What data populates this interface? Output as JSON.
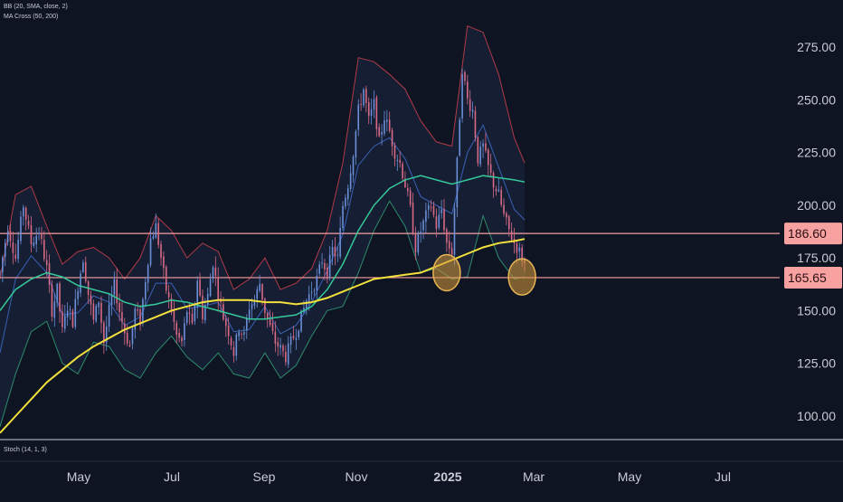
{
  "chart_data": {
    "type": "line",
    "indicators": {
      "bb_label": "BB (20, SMA, close, 2)",
      "ma_label": "MA Cross (50, 200)",
      "stoch_label": "Stoch (14, 1, 3)"
    },
    "y_axis": {
      "ticks": [
        275,
        250,
        225,
        200,
        175,
        150,
        125,
        100
      ],
      "tick_labels": [
        "275.00",
        "250.00",
        "225.00",
        "200.00",
        "175.00",
        "150.00",
        "125.00",
        "100.00"
      ],
      "ylim": [
        92,
        292
      ]
    },
    "x_axis": {
      "tick_labels": [
        "May",
        "Jul",
        "Sep",
        "Nov",
        "2025",
        "Mar",
        "May",
        "Jul"
      ],
      "bold_labels": [
        "2025"
      ]
    },
    "horizontal_levels": [
      {
        "value": 186.6,
        "label": "186.60",
        "color": "#f7a1a1"
      },
      {
        "value": 165.65,
        "label": "165.65",
        "color": "#f7a1a1"
      }
    ],
    "price_path": [
      [
        0,
        168
      ],
      [
        3,
        190
      ],
      [
        6,
        175
      ],
      [
        9,
        200
      ],
      [
        12,
        182
      ],
      [
        15,
        188
      ],
      [
        18,
        170
      ],
      [
        20,
        150
      ],
      [
        22,
        160
      ],
      [
        24,
        140
      ],
      [
        26,
        152
      ],
      [
        28,
        145
      ],
      [
        30,
        162
      ],
      [
        32,
        175
      ],
      [
        34,
        158
      ],
      [
        36,
        145
      ],
      [
        38,
        155
      ],
      [
        40,
        135
      ],
      [
        42,
        150
      ],
      [
        44,
        162
      ],
      [
        46,
        150
      ],
      [
        48,
        140
      ],
      [
        50,
        133
      ],
      [
        52,
        150
      ],
      [
        54,
        145
      ],
      [
        56,
        165
      ],
      [
        58,
        184
      ],
      [
        60,
        190
      ],
      [
        62,
        175
      ],
      [
        64,
        160
      ],
      [
        66,
        150
      ],
      [
        68,
        138
      ],
      [
        70,
        135
      ],
      [
        72,
        150
      ],
      [
        74,
        142
      ],
      [
        76,
        165
      ],
      [
        78,
        148
      ],
      [
        80,
        157
      ],
      [
        82,
        173
      ],
      [
        84,
        158
      ],
      [
        86,
        147
      ],
      [
        88,
        140
      ],
      [
        90,
        130
      ],
      [
        92,
        142
      ],
      [
        94,
        138
      ],
      [
        96,
        152
      ],
      [
        98,
        155
      ],
      [
        100,
        163
      ],
      [
        102,
        150
      ],
      [
        104,
        142
      ],
      [
        106,
        135
      ],
      [
        108,
        132
      ],
      [
        110,
        128
      ],
      [
        112,
        135
      ],
      [
        114,
        140
      ],
      [
        116,
        147
      ],
      [
        118,
        155
      ],
      [
        120,
        160
      ],
      [
        122,
        165
      ],
      [
        124,
        174
      ],
      [
        126,
        168
      ],
      [
        128,
        179
      ],
      [
        130,
        175
      ],
      [
        132,
        200
      ],
      [
        134,
        210
      ],
      [
        136,
        225
      ],
      [
        138,
        245
      ],
      [
        140,
        255
      ],
      [
        142,
        240
      ],
      [
        144,
        248
      ],
      [
        146,
        230
      ],
      [
        148,
        242
      ],
      [
        150,
        235
      ],
      [
        152,
        225
      ],
      [
        154,
        220
      ],
      [
        156,
        210
      ],
      [
        158,
        198
      ],
      [
        160,
        180
      ],
      [
        162,
        188
      ],
      [
        164,
        195
      ],
      [
        166,
        200
      ],
      [
        168,
        190
      ],
      [
        170,
        198
      ],
      [
        172,
        182
      ],
      [
        174,
        178
      ],
      [
        176,
        220
      ],
      [
        178,
        265
      ],
      [
        180,
        250
      ],
      [
        182,
        245
      ],
      [
        184,
        222
      ],
      [
        186,
        228
      ],
      [
        188,
        218
      ],
      [
        190,
        210
      ],
      [
        192,
        205
      ],
      [
        194,
        195
      ],
      [
        196,
        188
      ],
      [
        198,
        182
      ],
      [
        200,
        178
      ],
      [
        202,
        172
      ]
    ],
    "bb_upper": [
      [
        0,
        165
      ],
      [
        6,
        205
      ],
      [
        12,
        209
      ],
      [
        18,
        190
      ],
      [
        24,
        172
      ],
      [
        30,
        178
      ],
      [
        36,
        180
      ],
      [
        42,
        175
      ],
      [
        48,
        165
      ],
      [
        54,
        175
      ],
      [
        60,
        195
      ],
      [
        66,
        188
      ],
      [
        72,
        175
      ],
      [
        78,
        182
      ],
      [
        84,
        178
      ],
      [
        90,
        160
      ],
      [
        96,
        165
      ],
      [
        102,
        175
      ],
      [
        108,
        160
      ],
      [
        114,
        163
      ],
      [
        120,
        170
      ],
      [
        126,
        188
      ],
      [
        132,
        220
      ],
      [
        138,
        270
      ],
      [
        144,
        268
      ],
      [
        150,
        262
      ],
      [
        156,
        255
      ],
      [
        162,
        240
      ],
      [
        168,
        230
      ],
      [
        174,
        228
      ],
      [
        180,
        285
      ],
      [
        186,
        282
      ],
      [
        192,
        262
      ],
      [
        198,
        232
      ],
      [
        202,
        220
      ]
    ],
    "bb_lower": [
      [
        0,
        95
      ],
      [
        6,
        120
      ],
      [
        12,
        140
      ],
      [
        18,
        145
      ],
      [
        24,
        125
      ],
      [
        30,
        120
      ],
      [
        36,
        135
      ],
      [
        42,
        133
      ],
      [
        48,
        122
      ],
      [
        54,
        118
      ],
      [
        60,
        130
      ],
      [
        66,
        138
      ],
      [
        72,
        128
      ],
      [
        78,
        122
      ],
      [
        84,
        130
      ],
      [
        90,
        120
      ],
      [
        96,
        118
      ],
      [
        102,
        130
      ],
      [
        108,
        118
      ],
      [
        114,
        124
      ],
      [
        120,
        138
      ],
      [
        126,
        150
      ],
      [
        132,
        152
      ],
      [
        138,
        168
      ],
      [
        144,
        188
      ],
      [
        150,
        202
      ],
      [
        156,
        190
      ],
      [
        162,
        168
      ],
      [
        168,
        170
      ],
      [
        174,
        165
      ],
      [
        180,
        166
      ],
      [
        186,
        195
      ],
      [
        192,
        175
      ],
      [
        198,
        165
      ],
      [
        202,
        166
      ]
    ],
    "bb_middle": [
      [
        0,
        130
      ],
      [
        6,
        165
      ],
      [
        12,
        176
      ],
      [
        18,
        168
      ],
      [
        24,
        148
      ],
      [
        30,
        149
      ],
      [
        36,
        157
      ],
      [
        42,
        154
      ],
      [
        48,
        143
      ],
      [
        54,
        147
      ],
      [
        60,
        163
      ],
      [
        66,
        163
      ],
      [
        72,
        151
      ],
      [
        78,
        152
      ],
      [
        84,
        154
      ],
      [
        90,
        140
      ],
      [
        96,
        141
      ],
      [
        102,
        152
      ],
      [
        108,
        139
      ],
      [
        114,
        143
      ],
      [
        120,
        154
      ],
      [
        126,
        169
      ],
      [
        132,
        186
      ],
      [
        138,
        219
      ],
      [
        144,
        228
      ],
      [
        150,
        232
      ],
      [
        156,
        222
      ],
      [
        162,
        204
      ],
      [
        168,
        200
      ],
      [
        174,
        196
      ],
      [
        180,
        225
      ],
      [
        186,
        238
      ],
      [
        192,
        218
      ],
      [
        198,
        198
      ],
      [
        202,
        193
      ]
    ],
    "ma50": [
      [
        0,
        150
      ],
      [
        6,
        160
      ],
      [
        12,
        165
      ],
      [
        18,
        168
      ],
      [
        24,
        166
      ],
      [
        30,
        162
      ],
      [
        36,
        160
      ],
      [
        42,
        158
      ],
      [
        48,
        154
      ],
      [
        54,
        152
      ],
      [
        60,
        153
      ],
      [
        66,
        155
      ],
      [
        72,
        154
      ],
      [
        78,
        152
      ],
      [
        84,
        150
      ],
      [
        90,
        148
      ],
      [
        96,
        146
      ],
      [
        102,
        146
      ],
      [
        108,
        147
      ],
      [
        114,
        148
      ],
      [
        120,
        152
      ],
      [
        126,
        160
      ],
      [
        132,
        172
      ],
      [
        138,
        188
      ],
      [
        144,
        200
      ],
      [
        150,
        208
      ],
      [
        156,
        212
      ],
      [
        162,
        214
      ],
      [
        168,
        212
      ],
      [
        174,
        210
      ],
      [
        180,
        212
      ],
      [
        186,
        214
      ],
      [
        192,
        213
      ],
      [
        198,
        212
      ],
      [
        202,
        211
      ]
    ],
    "ma200": [
      [
        0,
        92
      ],
      [
        6,
        100
      ],
      [
        12,
        108
      ],
      [
        18,
        116
      ],
      [
        24,
        122
      ],
      [
        30,
        128
      ],
      [
        36,
        133
      ],
      [
        42,
        137
      ],
      [
        48,
        141
      ],
      [
        54,
        144
      ],
      [
        60,
        147
      ],
      [
        66,
        150
      ],
      [
        72,
        152
      ],
      [
        78,
        154
      ],
      [
        84,
        155
      ],
      [
        90,
        155
      ],
      [
        96,
        155
      ],
      [
        102,
        154
      ],
      [
        108,
        154
      ],
      [
        114,
        153
      ],
      [
        120,
        154
      ],
      [
        126,
        156
      ],
      [
        132,
        159
      ],
      [
        138,
        162
      ],
      [
        144,
        165
      ],
      [
        150,
        166
      ],
      [
        156,
        167
      ],
      [
        162,
        168
      ],
      [
        168,
        171
      ],
      [
        174,
        174
      ],
      [
        180,
        177
      ],
      [
        186,
        180
      ],
      [
        192,
        182
      ],
      [
        198,
        183
      ],
      [
        202,
        184
      ]
    ],
    "highlight_circles": [
      {
        "center": [
          172,
          168
        ]
      },
      {
        "center": [
          201,
          166
        ]
      }
    ],
    "colors": {
      "background": "#0f1422",
      "candle_up": "#6b8fd8",
      "candle_down": "#d96a86",
      "bb_upper": "#b03a48",
      "bb_lower": "#2e8b6c",
      "bb_middle": "#3a62b8",
      "bb_fill": "#1b2740",
      "ma50": "#35c99a",
      "ma200": "#f2e03c",
      "level_line": "#f7a1a1",
      "level_label_bg": "#f7a1a1",
      "level_label_text": "#2a0f12",
      "axis_text": "#c9ccd4",
      "circle_fill": "#d89a3c",
      "circle_stroke": "#e9b452"
    }
  }
}
